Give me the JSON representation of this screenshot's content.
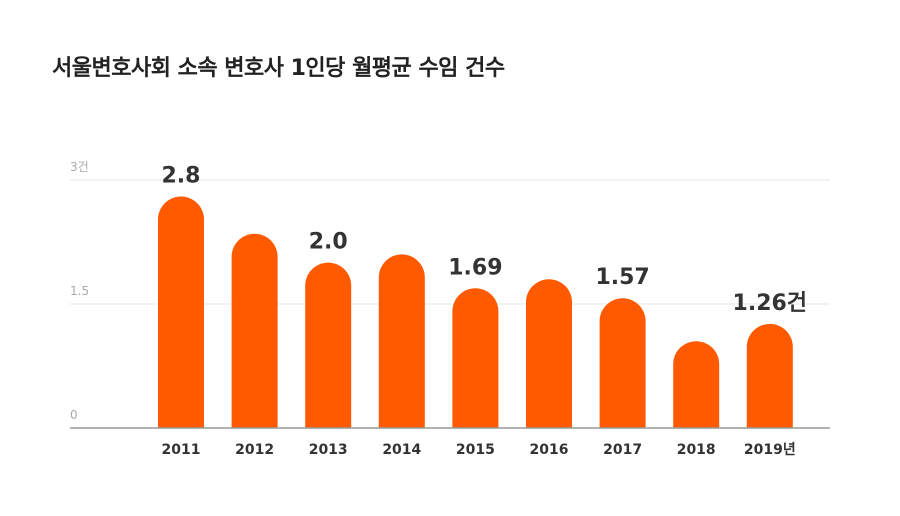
{
  "chart_data": {
    "type": "bar",
    "title": "서울변호사회 소속 변호사 1인당 월평균 수임 건수",
    "categories": [
      "2011",
      "2012",
      "2013",
      "2014",
      "2015",
      "2016",
      "2017",
      "2018",
      "2019년"
    ],
    "values": [
      2.8,
      2.35,
      2.0,
      2.1,
      1.69,
      1.8,
      1.57,
      1.05,
      1.26
    ],
    "data_labels": [
      "2.8",
      "",
      "2.0",
      "",
      "1.69",
      "",
      "1.57",
      "",
      "1.26건"
    ],
    "yticks": [
      {
        "value": 0,
        "label": "0"
      },
      {
        "value": 1.5,
        "label": "1.5"
      },
      {
        "value": 3,
        "label": "3건"
      }
    ],
    "ylim": [
      0,
      3
    ],
    "xlabel": "",
    "ylabel": "",
    "bar_color": "#FF5A00",
    "grid_color": "#e6e6e6",
    "axis_color": "#999999"
  }
}
